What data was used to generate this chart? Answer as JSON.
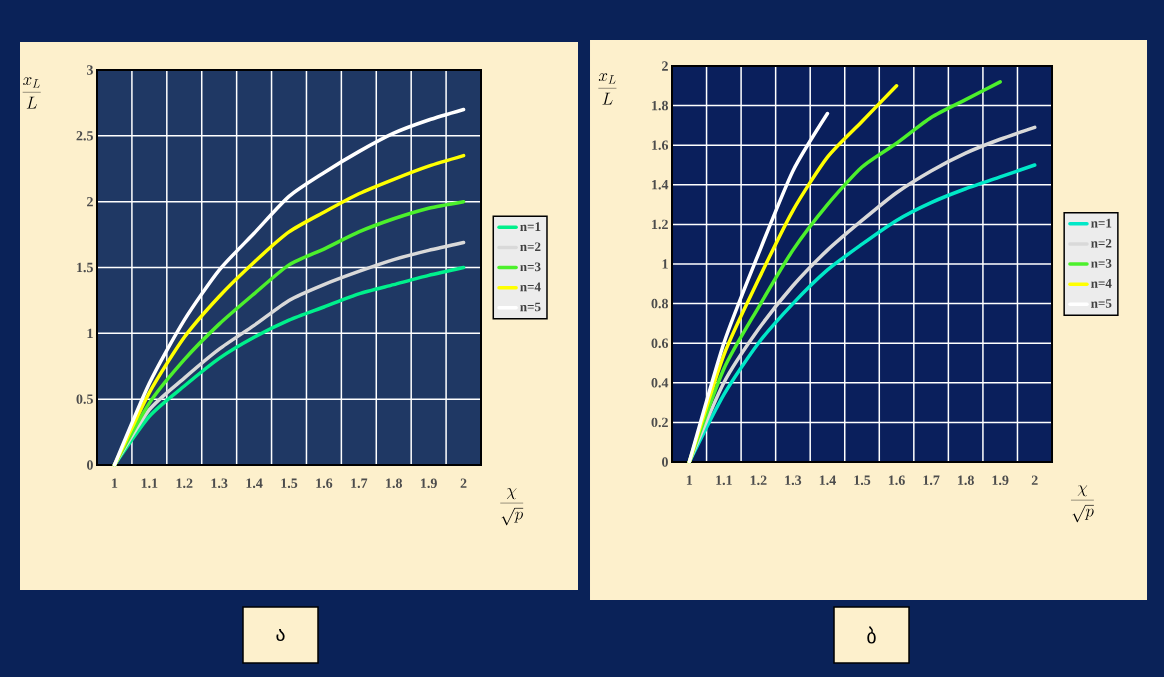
{
  "chart_data": [
    {
      "type": "line",
      "xlabel": "\\frac{\\chi}{\\sqrt{p}}",
      "ylabel": "\\frac{x_L}{L}",
      "annotations": [
        "ა"
      ],
      "x": [
        1,
        1.1,
        1.2,
        1.3,
        1.4,
        1.5,
        1.6,
        1.7,
        1.8,
        1.9,
        2
      ],
      "xlim": [
        0.95,
        2.05
      ],
      "xticks": [
        1,
        1.1,
        1.2,
        1.3,
        1.4,
        1.5,
        1.6,
        1.7,
        1.8,
        1.9,
        2
      ],
      "ylim": [
        0,
        3
      ],
      "yticks": [
        0,
        0.5,
        1,
        1.5,
        2,
        2.5,
        3
      ],
      "grid": true,
      "legend": "right",
      "marker": "none",
      "line_style": "solid",
      "series": [
        {
          "name": "n=1",
          "color": "#00f08c",
          "values": [
            0,
            0.37,
            0.6,
            0.81,
            0.97,
            1.1,
            1.2,
            1.3,
            1.37,
            1.44,
            1.5
          ]
        },
        {
          "name": "n=2",
          "color": "#d9d9d9",
          "values": [
            0,
            0.42,
            0.66,
            0.88,
            1.06,
            1.25,
            1.37,
            1.47,
            1.56,
            1.63,
            1.69
          ]
        },
        {
          "name": "n=3",
          "color": "#4cf02c",
          "values": [
            0,
            0.47,
            0.8,
            1.07,
            1.3,
            1.52,
            1.64,
            1.77,
            1.87,
            1.95,
            2.0
          ]
        },
        {
          "name": "n=4",
          "color": "#ffff00",
          "values": [
            0,
            0.55,
            0.97,
            1.28,
            1.54,
            1.77,
            1.92,
            2.06,
            2.17,
            2.27,
            2.35
          ]
        },
        {
          "name": "n=5",
          "color": "#ffffff",
          "values": [
            0,
            0.62,
            1.1,
            1.48,
            1.76,
            2.04,
            2.22,
            2.38,
            2.52,
            2.62,
            2.7
          ]
        }
      ]
    },
    {
      "type": "line",
      "xlabel": "\\frac{\\chi}{\\sqrt{p}}",
      "ylabel": "\\frac{x_L}{L}",
      "annotations": [
        "ბ"
      ],
      "x": [
        1,
        1.1,
        1.2,
        1.3,
        1.4,
        1.5,
        1.6,
        1.7,
        1.8,
        1.9,
        2
      ],
      "xlim": [
        0.95,
        2.05
      ],
      "xticks": [
        1,
        1.1,
        1.2,
        1.3,
        1.4,
        1.5,
        1.6,
        1.7,
        1.8,
        1.9,
        2
      ],
      "ylim": [
        0,
        2
      ],
      "yticks": [
        0,
        0.2,
        0.4,
        0.6,
        0.8,
        1,
        1.2,
        1.4,
        1.6,
        1.8,
        2
      ],
      "grid": true,
      "legend": "right",
      "marker": "none",
      "line_style": "solid",
      "series": [
        {
          "name": "n=1",
          "color": "#00e8c8",
          "values": [
            0,
            0.34,
            0.6,
            0.8,
            0.97,
            1.1,
            1.22,
            1.31,
            1.38,
            1.44,
            1.5
          ]
        },
        {
          "name": "n=2",
          "color": "#d9d9d9",
          "values": [
            0,
            0.4,
            0.67,
            0.89,
            1.07,
            1.22,
            1.36,
            1.47,
            1.56,
            1.63,
            1.69
          ]
        },
        {
          "name": "n=3",
          "color": "#4cf02c",
          "values": [
            0,
            0.47,
            0.78,
            1.07,
            1.3,
            1.49,
            1.61,
            1.74,
            1.83,
            1.92,
            null
          ]
        },
        {
          "name": "n=4",
          "color": "#ffff00",
          "values": [
            0,
            0.54,
            0.92,
            1.27,
            1.54,
            1.72,
            1.9,
            null,
            null,
            null,
            null
          ]
        },
        {
          "name": "n=5",
          "color": "#ffffff",
          "values": [
            0,
            0.6,
            1.05,
            1.47,
            1.76,
            null,
            null,
            null,
            null,
            null,
            null
          ]
        }
      ]
    }
  ]
}
